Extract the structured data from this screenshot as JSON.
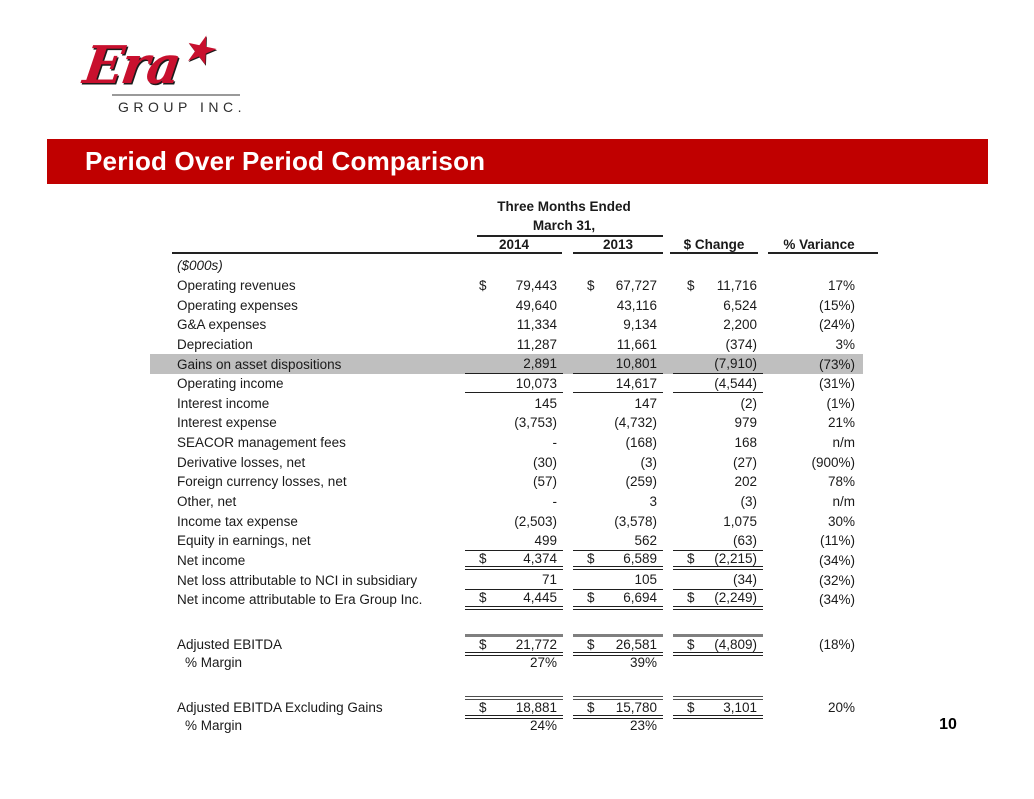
{
  "colors": {
    "accent_red": "#C00000",
    "highlight_gray": "#BFBFBF",
    "logo_red": "#C8102E"
  },
  "slide": {
    "page_number": "10"
  },
  "logo": {
    "brand": "Era",
    "star": "★",
    "subtitle": "GROUP INC."
  },
  "title_bar": {
    "text": "Period Over Period Comparison"
  },
  "table": {
    "header": {
      "group_line1": "Three Months Ended",
      "group_line2": "March 31,",
      "columns": [
        "2014",
        "2013",
        "$ Change",
        "% Variance"
      ]
    },
    "rows": [
      {
        "label": "($000s)",
        "italic": true,
        "v1": "",
        "v2": "",
        "v3": "",
        "var": ""
      },
      {
        "label": "Operating revenues",
        "dollar": true,
        "v1": "79,443",
        "v2": "67,727",
        "v3": "11,716",
        "var": "17%"
      },
      {
        "label": "Operating expenses",
        "v1": "49,640",
        "v2": "43,116",
        "v3": "6,524",
        "var": "(15%)"
      },
      {
        "label": "G&A expenses",
        "v1": "11,334",
        "v2": "9,134",
        "v3": "2,200",
        "var": "(24%)"
      },
      {
        "label": "Depreciation",
        "v1": "11,287",
        "v2": "11,661",
        "v3": "(374)",
        "var": "3%"
      },
      {
        "label": "Gains on asset dispositions",
        "v1": "2,891",
        "v2": "10,801",
        "v3": "(7,910)",
        "var": "(73%)",
        "highlight": true,
        "bottom": "single"
      },
      {
        "label": "Operating income",
        "v1": "10,073",
        "v2": "14,617",
        "v3": "(4,544)",
        "var": "(31%)",
        "bottom": "single"
      },
      {
        "label": "Interest income",
        "v1": "145",
        "v2": "147",
        "v3": "(2)",
        "var": "(1%)"
      },
      {
        "label": "Interest expense",
        "v1": "(3,753)",
        "v2": "(4,732)",
        "v3": "979",
        "var": "21%"
      },
      {
        "label": "SEACOR management fees",
        "v1": "-",
        "v2": "(168)",
        "v3": "168",
        "var": "n/m"
      },
      {
        "label": "Derivative losses, net",
        "v1": "(30)",
        "v2": "(3)",
        "v3": "(27)",
        "var": "(900%)"
      },
      {
        "label": "Foreign currency losses, net",
        "v1": "(57)",
        "v2": "(259)",
        "v3": "202",
        "var": "78%"
      },
      {
        "label": "Other, net",
        "v1": "-",
        "v2": "3",
        "v3": "(3)",
        "var": "n/m"
      },
      {
        "label": "Income tax expense",
        "v1": "(2,503)",
        "v2": "(3,578)",
        "v3": "1,075",
        "var": "30%"
      },
      {
        "label": "Equity in earnings, net",
        "v1": "499",
        "v2": "562",
        "v3": "(63)",
        "var": "(11%)",
        "bottom": "single"
      },
      {
        "label": "Net income",
        "dollar": true,
        "v1": "4,374",
        "v2": "6,589",
        "v3": "(2,215)",
        "var": "(34%)",
        "bottom": "double"
      },
      {
        "label": "Net loss attributable to NCI in subsidiary",
        "v1": "71",
        "v2": "105",
        "v3": "(34)",
        "var": "(32%)",
        "bottom": "single"
      },
      {
        "label": "Net income attributable to Era Group Inc.",
        "dollar": true,
        "v1": "4,445",
        "v2": "6,694",
        "v3": "(2,249)",
        "var": "(34%)",
        "bottom": "double"
      },
      {
        "spacer": 24
      },
      {
        "label": "Adjusted EBITDA",
        "dollar": true,
        "v1": "21,772",
        "v2": "26,581",
        "v3": "(4,809)",
        "var": "(18%)",
        "top": "thick",
        "bottom": "double"
      },
      {
        "label": "% Margin",
        "indent": true,
        "v1": "27%",
        "v2": "39%",
        "v3": "",
        "var": ""
      },
      {
        "spacer": 23
      },
      {
        "label": "Adjusted EBITDA Excluding Gains",
        "dollar": true,
        "v1": "18,881",
        "v2": "15,780",
        "v3": "3,101",
        "var": "20%",
        "top": "double",
        "bottom": "double"
      },
      {
        "label": "% Margin",
        "indent": true,
        "v1": "24%",
        "v2": "23%",
        "v3": "",
        "var": ""
      }
    ]
  }
}
